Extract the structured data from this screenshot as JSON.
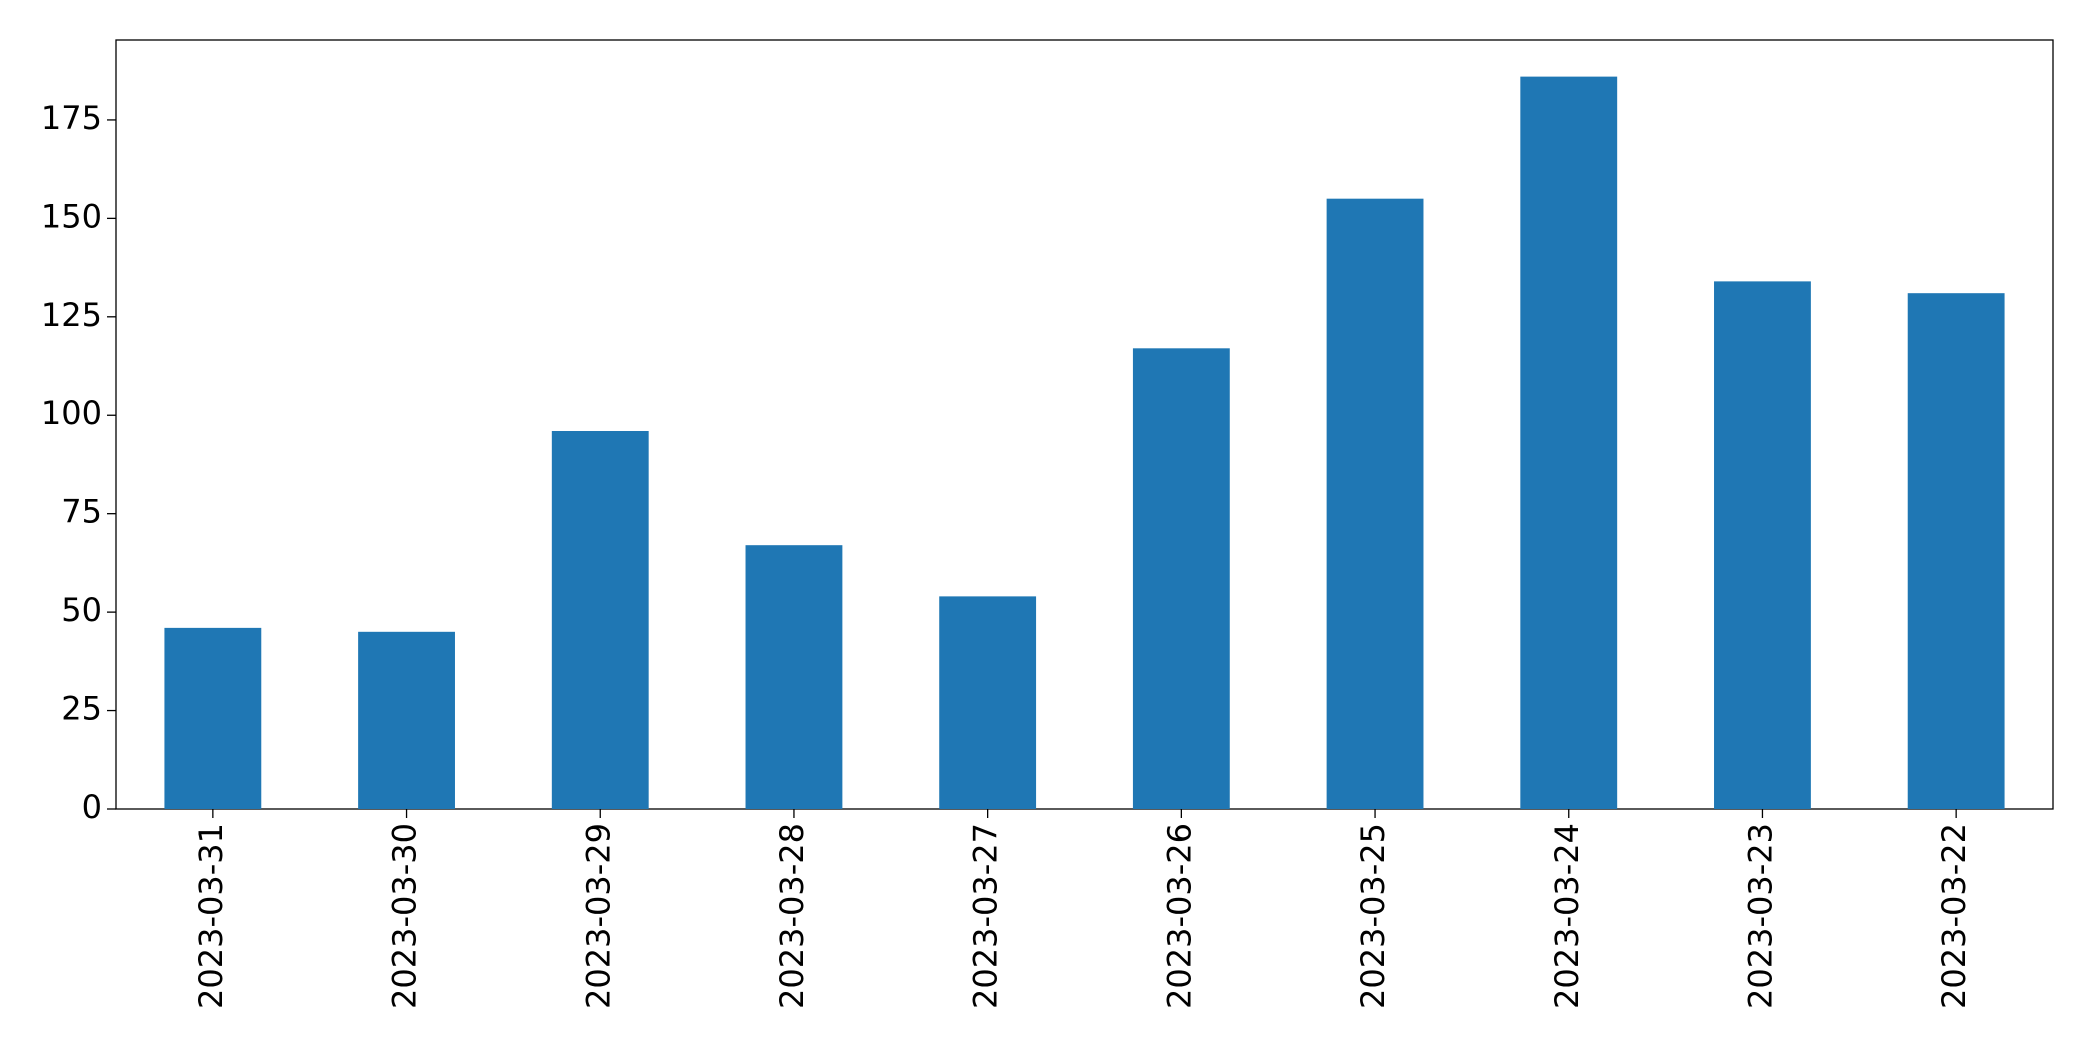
{
  "chart_data": {
    "type": "bar",
    "categories": [
      "2023-03-31",
      "2023-03-30",
      "2023-03-29",
      "2023-03-28",
      "2023-03-27",
      "2023-03-26",
      "2023-03-25",
      "2023-03-24",
      "2023-03-23",
      "2023-03-22"
    ],
    "values": [
      46,
      45,
      96,
      67,
      54,
      117,
      155,
      186,
      134,
      131
    ],
    "color": "#1f77b4",
    "ylim": [
      0,
      195.3
    ],
    "yticks": [
      0,
      25,
      50,
      75,
      100,
      125,
      150,
      175
    ],
    "grid": false
  }
}
